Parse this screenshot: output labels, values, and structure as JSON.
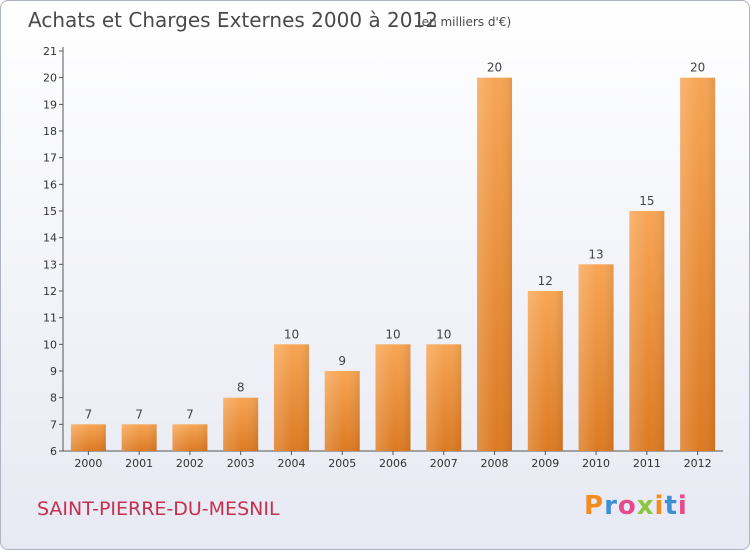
{
  "header": {
    "title": "Achats et Charges Externes 2000 à 2012",
    "subtitle": "(en milliers d'€)"
  },
  "footer": {
    "place": "SAINT-PIERRE-DU-MESNIL",
    "logo_text": "Proxiti"
  },
  "colors": {
    "bar_light": "#f7a554",
    "bar_dark": "#dc7a22",
    "place_text": "#c4304e",
    "logo_letters": [
      "#f28c1e",
      "#3d8fd6",
      "#e54b8c",
      "#8cc63f",
      "#f28c1e",
      "#3d8fd6",
      "#e54b8c"
    ]
  },
  "chart_data": {
    "type": "bar",
    "categories": [
      "2000",
      "2001",
      "2002",
      "2003",
      "2004",
      "2005",
      "2006",
      "2007",
      "2008",
      "2009",
      "2010",
      "2011",
      "2012"
    ],
    "values": [
      7,
      7,
      7,
      8,
      10,
      9,
      10,
      10,
      20,
      12,
      13,
      15,
      20
    ],
    "title": "Achats et Charges Externes 2000 à 2012",
    "subtitle": "(en milliers d'€)",
    "ylim": [
      6,
      21
    ],
    "yticks": [
      6,
      7,
      8,
      9,
      10,
      11,
      12,
      13,
      14,
      15,
      16,
      17,
      18,
      19,
      20,
      21
    ],
    "grid": false,
    "legend": "none",
    "data_labels": true
  }
}
